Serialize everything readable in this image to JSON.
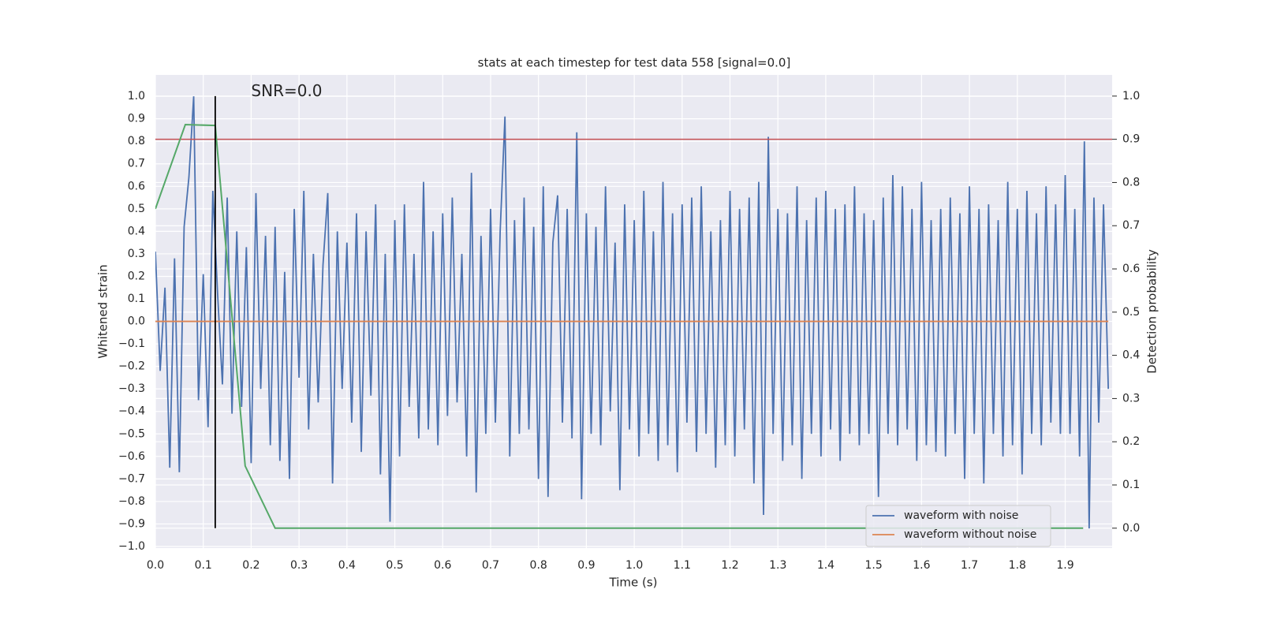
{
  "chart_data": {
    "type": "line",
    "title": "stats at each timestep for test data 558 [signal=0.0]",
    "annotation": "SNR=0.0",
    "annotation_x": 0.2,
    "annotation_y": 1.02,
    "xlabel": "Time (s)",
    "ylabel": "Whitened strain",
    "y2label": "Detection probability",
    "grid": true,
    "legend": "lower right",
    "xlim": [
      0,
      1.998
    ],
    "ylim": [
      -1.007,
      1.095
    ],
    "y2lim": [
      -0.046,
      1.049
    ],
    "xticks": [
      {
        "value": 0,
        "label": "0.0"
      },
      0.1,
      0.2,
      0.3,
      0.4,
      0.5,
      0.6,
      0.7,
      0.8,
      0.9,
      {
        "value": 1,
        "label": "1.0"
      },
      1.1,
      1.2,
      1.3,
      1.4,
      1.5,
      1.6,
      1.7,
      1.8,
      1.9
    ],
    "yticks": [
      {
        "value": -1,
        "label": "−1.0"
      },
      {
        "value": -0.9,
        "label": "−0.9"
      },
      {
        "value": -0.8,
        "label": "−0.8"
      },
      {
        "value": -0.7,
        "label": "−0.7"
      },
      {
        "value": -0.6,
        "label": "−0.6"
      },
      {
        "value": -0.5,
        "label": "−0.5"
      },
      {
        "value": -0.4,
        "label": "−0.4"
      },
      {
        "value": -0.3,
        "label": "−0.3"
      },
      {
        "value": -0.2,
        "label": "−0.2"
      },
      {
        "value": -0.1,
        "label": "−0.1"
      },
      {
        "value": 0,
        "label": "0.0"
      },
      0.1,
      0.2,
      0.3,
      0.4,
      0.5,
      0.6,
      0.7,
      0.8,
      0.9,
      {
        "value": 1,
        "label": "1.0"
      }
    ],
    "y2ticks": [
      {
        "value": 0,
        "label": "0.0"
      },
      0.1,
      0.2,
      0.3,
      0.4,
      0.5,
      0.6,
      0.7,
      0.8,
      0.9,
      {
        "value": 1,
        "label": "1.0"
      }
    ],
    "series": [
      {
        "name": "waveform with noise",
        "color": "#4c72b0",
        "x": [
          0,
          0.01,
          0.02,
          0.03,
          0.04,
          0.05,
          0.06,
          0.07,
          0.08,
          0.09,
          0.1,
          0.11,
          0.12,
          0.13,
          0.14,
          0.15,
          0.16,
          0.17,
          0.18,
          0.19,
          0.2,
          0.21,
          0.22,
          0.23,
          0.24,
          0.25,
          0.26,
          0.27,
          0.28,
          0.29,
          0.3,
          0.31,
          0.32,
          0.33,
          0.34,
          0.35,
          0.36,
          0.37,
          0.38,
          0.39,
          0.4,
          0.41,
          0.42,
          0.43,
          0.44,
          0.45,
          0.46,
          0.47,
          0.48,
          0.49,
          0.5,
          0.51,
          0.52,
          0.53,
          0.54,
          0.55,
          0.56,
          0.57,
          0.58,
          0.59,
          0.6,
          0.61,
          0.62,
          0.63,
          0.64,
          0.65,
          0.66,
          0.67,
          0.68,
          0.69,
          0.7,
          0.71,
          0.72,
          0.73,
          0.74,
          0.75,
          0.76,
          0.77,
          0.78,
          0.79,
          0.8,
          0.81,
          0.82,
          0.83,
          0.84,
          0.85,
          0.86,
          0.87,
          0.88,
          0.89,
          0.9,
          0.91,
          0.92,
          0.93,
          0.94,
          0.95,
          0.96,
          0.97,
          0.98,
          0.99,
          1,
          1.01,
          1.02,
          1.03,
          1.04,
          1.05,
          1.06,
          1.07,
          1.08,
          1.09,
          1.1,
          1.11,
          1.12,
          1.13,
          1.14,
          1.15,
          1.16,
          1.17,
          1.18,
          1.19,
          1.2,
          1.21,
          1.22,
          1.23,
          1.24,
          1.25,
          1.26,
          1.27,
          1.28,
          1.29,
          1.3,
          1.31,
          1.32,
          1.33,
          1.34,
          1.35,
          1.36,
          1.37,
          1.38,
          1.39,
          1.4,
          1.41,
          1.42,
          1.43,
          1.44,
          1.45,
          1.46,
          1.47,
          1.48,
          1.49,
          1.5,
          1.51,
          1.52,
          1.53,
          1.54,
          1.55,
          1.56,
          1.57,
          1.58,
          1.59,
          1.6,
          1.61,
          1.62,
          1.63,
          1.64,
          1.65,
          1.66,
          1.67,
          1.68,
          1.69,
          1.7,
          1.71,
          1.72,
          1.73,
          1.74,
          1.75,
          1.76,
          1.77,
          1.78,
          1.79,
          1.8,
          1.81,
          1.82,
          1.83,
          1.84,
          1.85,
          1.86,
          1.87,
          1.88,
          1.89,
          1.9,
          1.91,
          1.92,
          1.93,
          1.94,
          1.95,
          1.96,
          1.97,
          1.98,
          1.99
        ],
        "values": [
          0.31,
          -0.22,
          0.15,
          -0.65,
          0.28,
          -0.67,
          0.42,
          0.64,
          1.0,
          -0.35,
          0.21,
          -0.47,
          0.58,
          0.12,
          -0.28,
          0.55,
          -0.41,
          0.4,
          -0.38,
          0.33,
          -0.63,
          0.57,
          -0.3,
          0.38,
          -0.55,
          0.42,
          -0.62,
          0.22,
          -0.7,
          0.5,
          -0.25,
          0.58,
          -0.48,
          0.3,
          -0.36,
          0.25,
          0.57,
          -0.72,
          0.4,
          -0.3,
          0.35,
          -0.45,
          0.48,
          -0.58,
          0.4,
          -0.33,
          0.52,
          -0.68,
          0.3,
          -0.89,
          0.45,
          -0.6,
          0.52,
          -0.38,
          0.3,
          -0.52,
          0.62,
          -0.48,
          0.4,
          -0.55,
          0.48,
          -0.42,
          0.55,
          -0.36,
          0.3,
          -0.6,
          0.66,
          -0.76,
          0.38,
          -0.5,
          0.5,
          -0.45,
          0.4,
          0.91,
          -0.6,
          0.45,
          -0.5,
          0.55,
          -0.48,
          0.42,
          -0.7,
          0.6,
          -0.78,
          0.35,
          0.56,
          -0.45,
          0.5,
          -0.52,
          0.84,
          -0.79,
          0.48,
          -0.5,
          0.42,
          -0.55,
          0.6,
          -0.4,
          0.35,
          -0.75,
          0.52,
          -0.48,
          0.45,
          -0.6,
          0.58,
          -0.5,
          0.4,
          -0.62,
          0.62,
          -0.55,
          0.48,
          -0.67,
          0.52,
          -0.45,
          0.55,
          -0.58,
          0.6,
          -0.5,
          0.4,
          -0.65,
          0.45,
          -0.55,
          0.58,
          -0.6,
          0.5,
          -0.48,
          0.55,
          -0.72,
          0.62,
          -0.86,
          0.82,
          -0.5,
          0.5,
          -0.62,
          0.48,
          -0.55,
          0.6,
          -0.7,
          0.45,
          -0.5,
          0.55,
          -0.6,
          0.58,
          -0.48,
          0.5,
          -0.62,
          0.52,
          -0.5,
          0.6,
          -0.55,
          0.48,
          -0.5,
          0.45,
          -0.78,
          0.55,
          -0.5,
          0.65,
          -0.55,
          0.6,
          -0.48,
          0.5,
          -0.62,
          0.62,
          -0.55,
          0.45,
          -0.58,
          0.5,
          -0.6,
          0.55,
          -0.5,
          0.48,
          -0.7,
          0.6,
          -0.5,
          0.5,
          -0.72,
          0.52,
          -0.5,
          0.45,
          -0.6,
          0.62,
          -0.55,
          0.5,
          -0.68,
          0.58,
          -0.5,
          0.48,
          -0.55,
          0.6,
          -0.45,
          0.52,
          -0.5,
          0.65,
          -0.5,
          0.5,
          -0.6,
          0.8,
          -0.92,
          0.55,
          -0.45,
          0.52,
          -0.3
        ]
      },
      {
        "name": "waveform without noise",
        "color": "#dd8452",
        "x": [
          0,
          1.99
        ],
        "values": [
          0,
          0
        ]
      }
    ],
    "probability": {
      "color": "#55a868",
      "axis": "y2",
      "x": [
        0,
        0.0625,
        0.125,
        0.1875,
        0.25,
        0.3125,
        0.375,
        0.4375,
        0.5,
        0.5625,
        0.625,
        0.6875,
        0.75,
        0.8125,
        0.875,
        0.9375,
        1,
        1.0625,
        1.125,
        1.1875,
        1.25,
        1.3125,
        1.375,
        1.4375,
        1.5,
        1.5625,
        1.625,
        1.6875,
        1.75,
        1.8125,
        1.875,
        1.9375
      ],
      "values": [
        0.739,
        0.934,
        0.932,
        0.144,
        0,
        0,
        0,
        0,
        0,
        0,
        0,
        0,
        0,
        0,
        0,
        0,
        0,
        0,
        0,
        0,
        0,
        0,
        0,
        0,
        0,
        0,
        0,
        0,
        0,
        0,
        0,
        0
      ]
    },
    "threshold": {
      "value": 0.9,
      "color": "#c44e52",
      "axis": "y2"
    },
    "detection_marker": {
      "x": 0.125,
      "y2_range": [
        0,
        1
      ],
      "color": "#000000"
    }
  }
}
